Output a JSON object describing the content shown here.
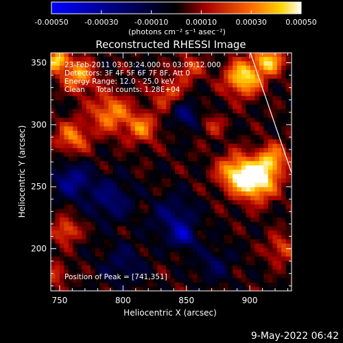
{
  "chart_data": {
    "type": "heatmap",
    "title": "Reconstructed RHESSI Image",
    "xlabel": "Heliocentric X (arcsec)",
    "ylabel": "Heliocentric Y (arcsec)",
    "xlim": [
      743,
      933
    ],
    "ylim": [
      166,
      358
    ],
    "x_ticks": [
      750,
      800,
      850,
      900
    ],
    "y_ticks": [
      200,
      250,
      300,
      350
    ],
    "colorbar": {
      "range": [
        -0.0005,
        0.0005
      ],
      "tick_values": [
        -0.0005,
        -0.0003,
        -0.0001,
        0.0001,
        0.0003,
        0.0005
      ],
      "tick_labels": [
        "-0.00050",
        "-0.00030",
        "-0.00010",
        "0.00010",
        "0.00030",
        "0.00050"
      ],
      "units_label": "(photons cm⁻² s⁻¹ asec⁻²)"
    },
    "annotations": [
      "23-Feb-2011 03:03:24.000 to 03:09:12.000",
      "Detectors: 3F 4F 5F 6F 7F 8F, Att 0",
      "Energy Range: 12.0 - 25.0 keV",
      "Clean     Total counts: 1.28E+04"
    ],
    "peak_label": "Position of Peak = [741,351]",
    "sources": [
      {
        "x": 905,
        "y": 255,
        "amp": 0.00052,
        "sigma": 11
      },
      {
        "x": 888,
        "y": 262,
        "amp": 0.00035,
        "sigma": 10
      },
      {
        "x": 918,
        "y": 272,
        "amp": 0.00032,
        "sigma": 9
      },
      {
        "x": 895,
        "y": 338,
        "amp": 0.00045,
        "sigma": 10
      },
      {
        "x": 915,
        "y": 352,
        "amp": 0.0004,
        "sigma": 8
      },
      {
        "x": 790,
        "y": 310,
        "amp": 0.00032,
        "sigma": 11
      },
      {
        "x": 815,
        "y": 298,
        "amp": 0.00028,
        "sigma": 9
      },
      {
        "x": 760,
        "y": 290,
        "amp": 0.0003,
        "sigma": 9
      },
      {
        "x": 765,
        "y": 340,
        "amp": 0.00035,
        "sigma": 9
      },
      {
        "x": 748,
        "y": 352,
        "amp": 0.00045,
        "sigma": 6
      },
      {
        "x": 835,
        "y": 325,
        "amp": 0.00022,
        "sigma": 8
      },
      {
        "x": 852,
        "y": 345,
        "amp": 0.0002,
        "sigma": 8
      },
      {
        "x": 755,
        "y": 215,
        "amp": 0.00028,
        "sigma": 7
      },
      {
        "x": 748,
        "y": 180,
        "amp": 0.0002,
        "sigma": 6
      },
      {
        "x": 925,
        "y": 200,
        "amp": 0.00022,
        "sigma": 8
      },
      {
        "x": 870,
        "y": 300,
        "amp": 0.00015,
        "sigma": 7
      },
      {
        "x": 760,
        "y": 255,
        "amp": -0.00028,
        "sigma": 10
      },
      {
        "x": 790,
        "y": 240,
        "amp": -0.00022,
        "sigma": 12
      },
      {
        "x": 840,
        "y": 225,
        "amp": -0.00022,
        "sigma": 12
      },
      {
        "x": 848,
        "y": 210,
        "amp": -0.0003,
        "sigma": 6
      },
      {
        "x": 850,
        "y": 308,
        "amp": -0.00022,
        "sigma": 8
      },
      {
        "x": 800,
        "y": 188,
        "amp": -0.00015,
        "sigma": 12
      },
      {
        "x": 872,
        "y": 188,
        "amp": -0.00015,
        "sigma": 10
      }
    ],
    "grid": false
  },
  "footer": {
    "date_stamp": "9-May-2022 06:42"
  }
}
